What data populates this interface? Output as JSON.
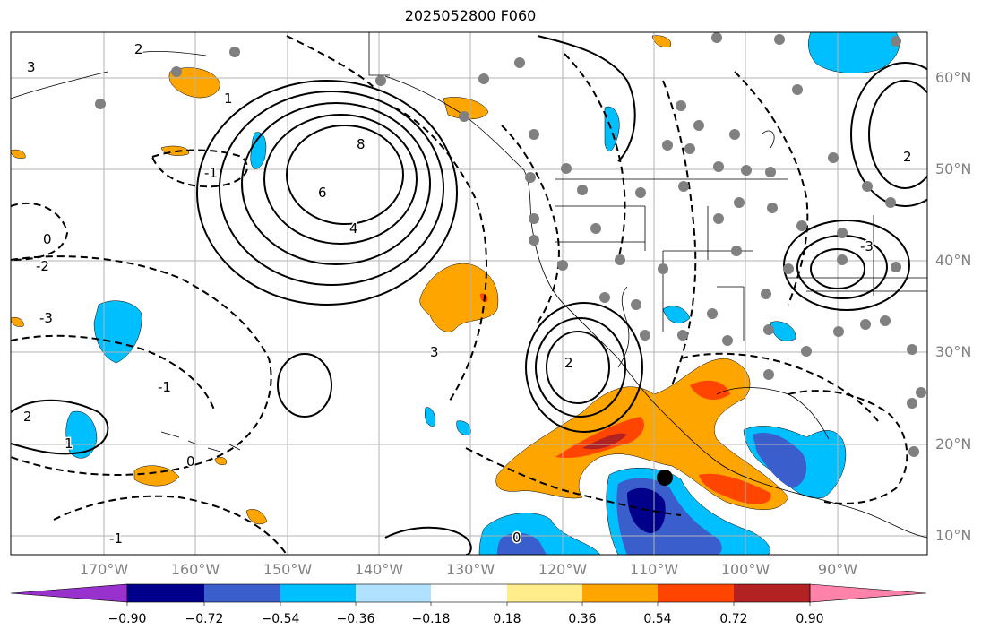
{
  "title": "2025052800 F060",
  "lat_labels": [
    "60°N",
    "50°N",
    "40°N",
    "30°N",
    "20°N",
    "10°N"
  ],
  "lon_labels": [
    "170°W",
    "160°W",
    "150°W",
    "140°W",
    "130°W",
    "120°W",
    "110°W",
    "100°W",
    "90°W"
  ],
  "colorbar": {
    "ticks": [
      "−0.90",
      "−0.72",
      "−0.54",
      "−0.36",
      "−0.18",
      "0.18",
      "0.36",
      "0.54",
      "0.72",
      "0.90"
    ],
    "colors": [
      "#9932cc",
      "#00008b",
      "#3a5fcd",
      "#00bfff",
      "#b0e2ff",
      "#ffffff",
      "#ffec8b",
      "#ffa500",
      "#ff4500",
      "#b22222",
      "#ff82ab"
    ]
  },
  "contour_labels": [
    "2",
    "3",
    "8",
    "6",
    "4",
    "2",
    "1",
    "0",
    "-1",
    "-2",
    "-3",
    "0",
    "-1",
    "1",
    "2",
    "3",
    "-3",
    "2",
    "0",
    "-1"
  ],
  "colors": {
    "grid": "#b3b3b3",
    "axis_text": "#808080",
    "dot": "#808080"
  }
}
